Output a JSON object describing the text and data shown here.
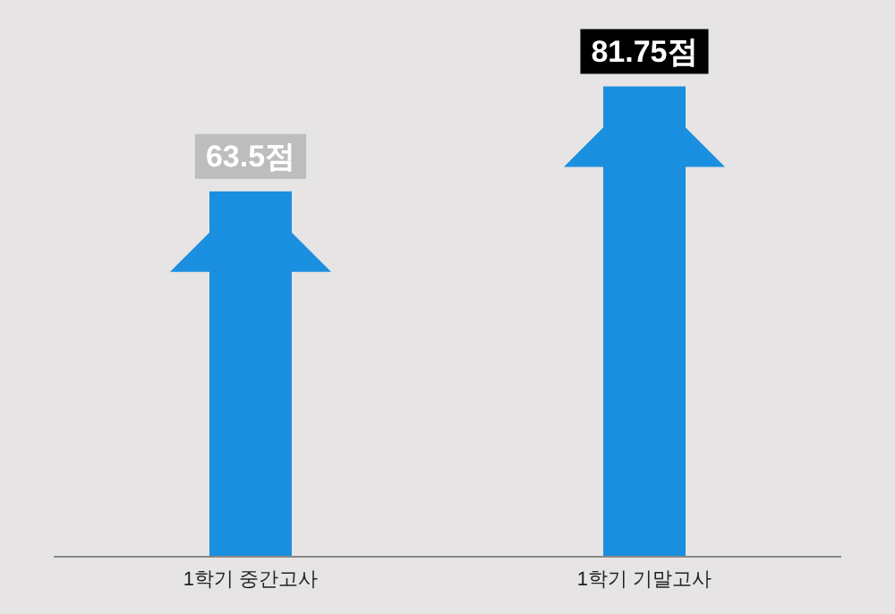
{
  "chart_data": {
    "type": "bar",
    "categories": [
      "1학기 중간고사",
      "1학기 기말고사"
    ],
    "values": [
      63.5,
      81.75
    ],
    "value_labels": [
      "63.5점",
      "81.75점"
    ],
    "colors": [
      "#1a8fe0",
      "#1a8fe0"
    ]
  }
}
